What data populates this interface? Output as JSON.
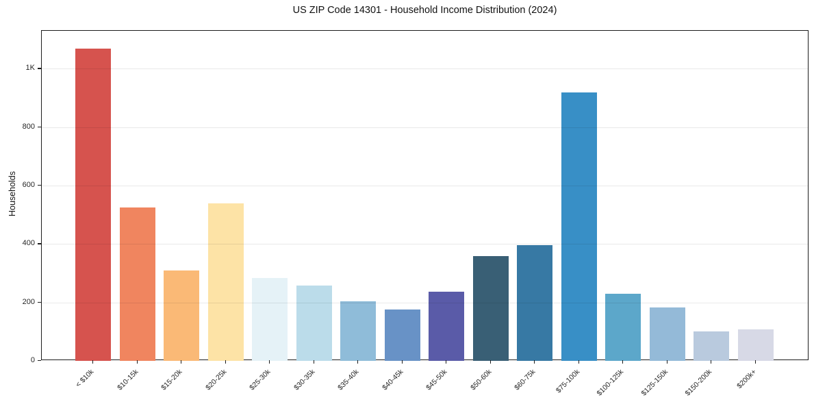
{
  "chart_data": {
    "type": "bar",
    "title": "US ZIP Code 14301 - Household Income Distribution (2024)",
    "xlabel": "",
    "ylabel": "Households",
    "categories": [
      "< $10k",
      "$10-15k",
      "$15-20k",
      "$20-25k",
      "$25-30k",
      "$30-35k",
      "$35-40k",
      "$40-45k",
      "$45-50k",
      "$50-60k",
      "$60-75k",
      "$75-100k",
      "$100-125k",
      "$125-150k",
      "$150-200k",
      "$200k+"
    ],
    "values": [
      1070,
      525,
      310,
      540,
      284,
      258,
      203,
      177,
      237,
      359,
      397,
      920,
      229,
      184,
      100,
      107
    ],
    "bar_colors": [
      "#d6534e",
      "#f0855f",
      "#fab976",
      "#fde3a6",
      "#e5f2f7",
      "#bbdcea",
      "#8fbcd9",
      "#6892c6",
      "#5a5ba8",
      "#395f75",
      "#3779a4",
      "#388fc6",
      "#5ca7ca",
      "#94bad8",
      "#b9cade",
      "#d7d9e6"
    ],
    "yticks": [
      {
        "value": 0,
        "label": "0"
      },
      {
        "value": 200,
        "label": "200"
      },
      {
        "value": 400,
        "label": "400"
      },
      {
        "value": 600,
        "label": "600"
      },
      {
        "value": 800,
        "label": "800"
      },
      {
        "value": 1000,
        "label": "1K"
      }
    ],
    "ylim": [
      0,
      1130
    ],
    "grid": true,
    "grid_on_top": true,
    "x_tick_rotation": 45,
    "legend": "none",
    "frame_color": "#1c1c1c",
    "background_color": "#ffffff"
  }
}
